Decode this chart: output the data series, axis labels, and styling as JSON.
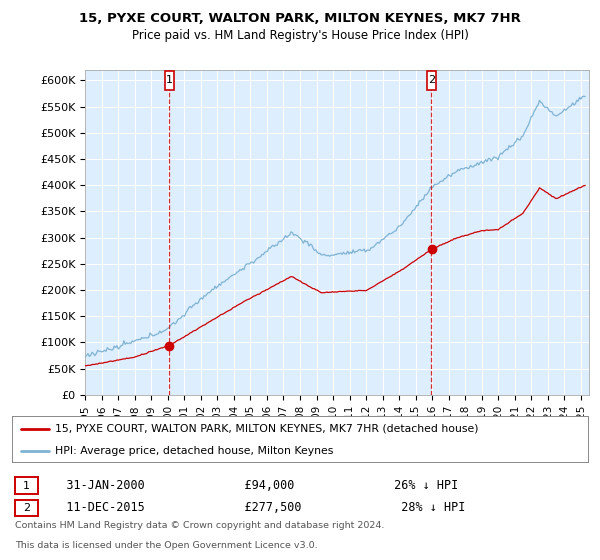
{
  "title1": "15, PYXE COURT, WALTON PARK, MILTON KEYNES, MK7 7HR",
  "title2": "Price paid vs. HM Land Registry's House Price Index (HPI)",
  "ylabel_ticks": [
    "£0",
    "£50K",
    "£100K",
    "£150K",
    "£200K",
    "£250K",
    "£300K",
    "£350K",
    "£400K",
    "£450K",
    "£500K",
    "£550K",
    "£600K"
  ],
  "ytick_vals": [
    0,
    50000,
    100000,
    150000,
    200000,
    250000,
    300000,
    350000,
    400000,
    450000,
    500000,
    550000,
    600000
  ],
  "ylim": [
    0,
    620000
  ],
  "xlim_start": 1995.0,
  "xlim_end": 2025.5,
  "transaction1": {
    "date_label": "31-JAN-2000",
    "price": 94000,
    "below_hpi": "26%",
    "x": 2000.08
  },
  "transaction2": {
    "date_label": "11-DEC-2015",
    "price": 277500,
    "below_hpi": "28%",
    "x": 2015.95
  },
  "legend_line1": "15, PYXE COURT, WALTON PARK, MILTON KEYNES, MK7 7HR (detached house)",
  "legend_line2": "HPI: Average price, detached house, Milton Keynes",
  "footnote1": "Contains HM Land Registry data © Crown copyright and database right 2024.",
  "footnote2": "This data is licensed under the Open Government Licence v3.0.",
  "color_red": "#cc0000",
  "color_blue": "#7fb3d3",
  "color_bg": "#ddeeff",
  "color_grid": "#ffffff",
  "xticks": [
    1995,
    1996,
    1997,
    1998,
    1999,
    2000,
    2001,
    2002,
    2003,
    2004,
    2005,
    2006,
    2007,
    2008,
    2009,
    2010,
    2011,
    2012,
    2013,
    2014,
    2015,
    2016,
    2017,
    2018,
    2019,
    2020,
    2021,
    2022,
    2023,
    2024,
    2025
  ]
}
